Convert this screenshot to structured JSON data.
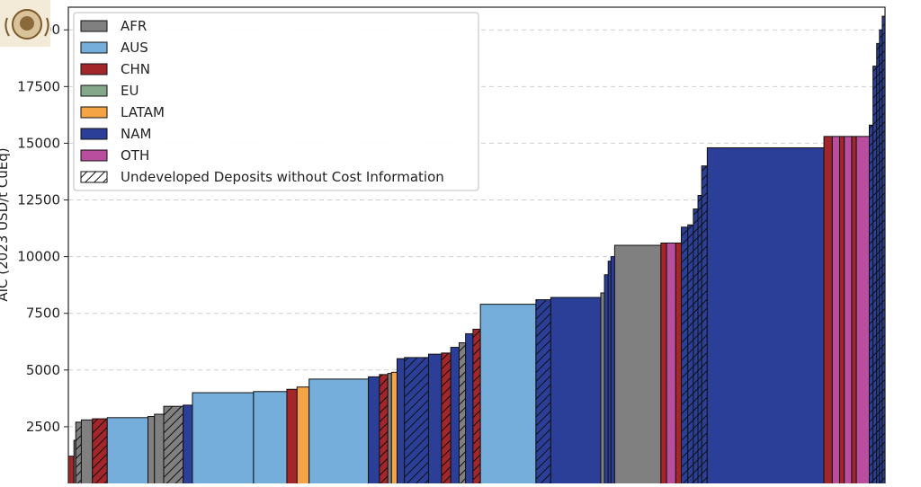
{
  "chart_data": {
    "type": "bar",
    "variant": "variable-width cost curve",
    "ylabel": "AIC (2023 USD/t CuEq)",
    "yticks": [
      2500,
      5000,
      7500,
      10000,
      12500,
      15000,
      17500,
      20000
    ],
    "ylim": [
      0,
      21000
    ],
    "grid": "horizontal dashed",
    "legend_position": "top-left",
    "legend": [
      {
        "key": "AFR",
        "label": "AFR",
        "color": "#808080"
      },
      {
        "key": "AUS",
        "label": "AUS",
        "color": "#75aedb"
      },
      {
        "key": "CHN",
        "label": "CHN",
        "color": "#a3262a"
      },
      {
        "key": "EU",
        "label": "EU",
        "color": "#84a889"
      },
      {
        "key": "LATAM",
        "label": "LATAM",
        "color": "#f5a445"
      },
      {
        "key": "NAM",
        "label": "NAM",
        "color": "#2b3f99"
      },
      {
        "key": "OTH",
        "label": "OTH",
        "color": "#b94d9e"
      },
      {
        "key": "UND",
        "label": "Undeveloped Deposits without Cost Information",
        "color": "#ffffff",
        "hatch": true
      }
    ],
    "series": [
      {
        "region": "CHN",
        "w": 6,
        "value": 1200
      },
      {
        "region": "AFR",
        "w": 2,
        "value": 1900
      },
      {
        "region": "AFR",
        "w": 6,
        "value": 2700,
        "hatch": true
      },
      {
        "region": "AFR",
        "w": 12,
        "value": 2800
      },
      {
        "region": "CHN",
        "w": 16,
        "value": 2850,
        "hatch": true
      },
      {
        "region": "AUS",
        "w": 44,
        "value": 2900
      },
      {
        "region": "AFR",
        "w": 7,
        "value": 2950
      },
      {
        "region": "AFR",
        "w": 10,
        "value": 3050
      },
      {
        "region": "AFR",
        "w": 21,
        "value": 3400,
        "hatch": true
      },
      {
        "region": "NAM",
        "w": 10,
        "value": 3450
      },
      {
        "region": "AUS",
        "w": 66,
        "value": 4000
      },
      {
        "region": "AUS",
        "w": 36,
        "value": 4050
      },
      {
        "region": "CHN",
        "w": 11,
        "value": 4150
      },
      {
        "region": "LATAM",
        "w": 13,
        "value": 4250
      },
      {
        "region": "AUS",
        "w": 64,
        "value": 4600
      },
      {
        "region": "NAM",
        "w": 12,
        "value": 4700
      },
      {
        "region": "CHN",
        "w": 9,
        "value": 4800,
        "hatch": true
      },
      {
        "region": "AFR",
        "w": 4,
        "value": 4850
      },
      {
        "region": "LATAM",
        "w": 6,
        "value": 4900
      },
      {
        "region": "NAM",
        "w": 8,
        "value": 5500
      },
      {
        "region": "NAM",
        "w": 26,
        "value": 5550,
        "hatch": true
      },
      {
        "region": "NAM",
        "w": 14,
        "value": 5700
      },
      {
        "region": "CHN",
        "w": 10,
        "value": 5750,
        "hatch": true
      },
      {
        "region": "NAM",
        "w": 9,
        "value": 6000
      },
      {
        "region": "AFR",
        "w": 7,
        "value": 6200,
        "hatch": true
      },
      {
        "region": "NAM",
        "w": 8,
        "value": 6600
      },
      {
        "region": "CHN",
        "w": 8,
        "value": 6800,
        "hatch": true
      },
      {
        "region": "AUS",
        "w": 60,
        "value": 7900
      },
      {
        "region": "NAM",
        "w": 16,
        "value": 8100,
        "hatch": true
      },
      {
        "region": "NAM",
        "w": 54,
        "value": 8200
      },
      {
        "region": "AFR",
        "w": 4,
        "value": 8400
      },
      {
        "region": "NAM",
        "w": 4,
        "value": 9200
      },
      {
        "region": "NAM",
        "w": 3,
        "value": 9800
      },
      {
        "region": "NAM",
        "w": 4,
        "value": 10000
      },
      {
        "region": "AFR",
        "w": 50,
        "value": 10500
      },
      {
        "region": "CHN",
        "w": 6,
        "value": 10600
      },
      {
        "region": "OTH",
        "w": 10,
        "value": 10600
      },
      {
        "region": "CHN",
        "w": 6,
        "value": 10600
      },
      {
        "region": "NAM",
        "w": 7,
        "value": 11300,
        "hatch": true
      },
      {
        "region": "NAM",
        "w": 6,
        "value": 11400,
        "hatch": true
      },
      {
        "region": "NAM",
        "w": 5,
        "value": 12100,
        "hatch": true
      },
      {
        "region": "NAM",
        "w": 4,
        "value": 12700,
        "hatch": true
      },
      {
        "region": "NAM",
        "w": 6,
        "value": 14000,
        "hatch": true
      },
      {
        "region": "NAM",
        "w": 126,
        "value": 14800
      },
      {
        "region": "CHN",
        "w": 9,
        "value": 15300
      },
      {
        "region": "OTH",
        "w": 8,
        "value": 15300
      },
      {
        "region": "CHN",
        "w": 5,
        "value": 15300
      },
      {
        "region": "OTH",
        "w": 8,
        "value": 15300
      },
      {
        "region": "CHN",
        "w": 5,
        "value": 15300
      },
      {
        "region": "OTH",
        "w": 14,
        "value": 15300
      },
      {
        "region": "NAM",
        "w": 4,
        "value": 15800,
        "hatch": true
      },
      {
        "region": "NAM",
        "w": 4,
        "value": 18400,
        "hatch": true
      },
      {
        "region": "NAM",
        "w": 3,
        "value": 19400,
        "hatch": true
      },
      {
        "region": "NAM",
        "w": 3,
        "value": 20000,
        "hatch": true
      },
      {
        "region": "NAM",
        "w": 3,
        "value": 20600,
        "hatch": true
      }
    ]
  }
}
